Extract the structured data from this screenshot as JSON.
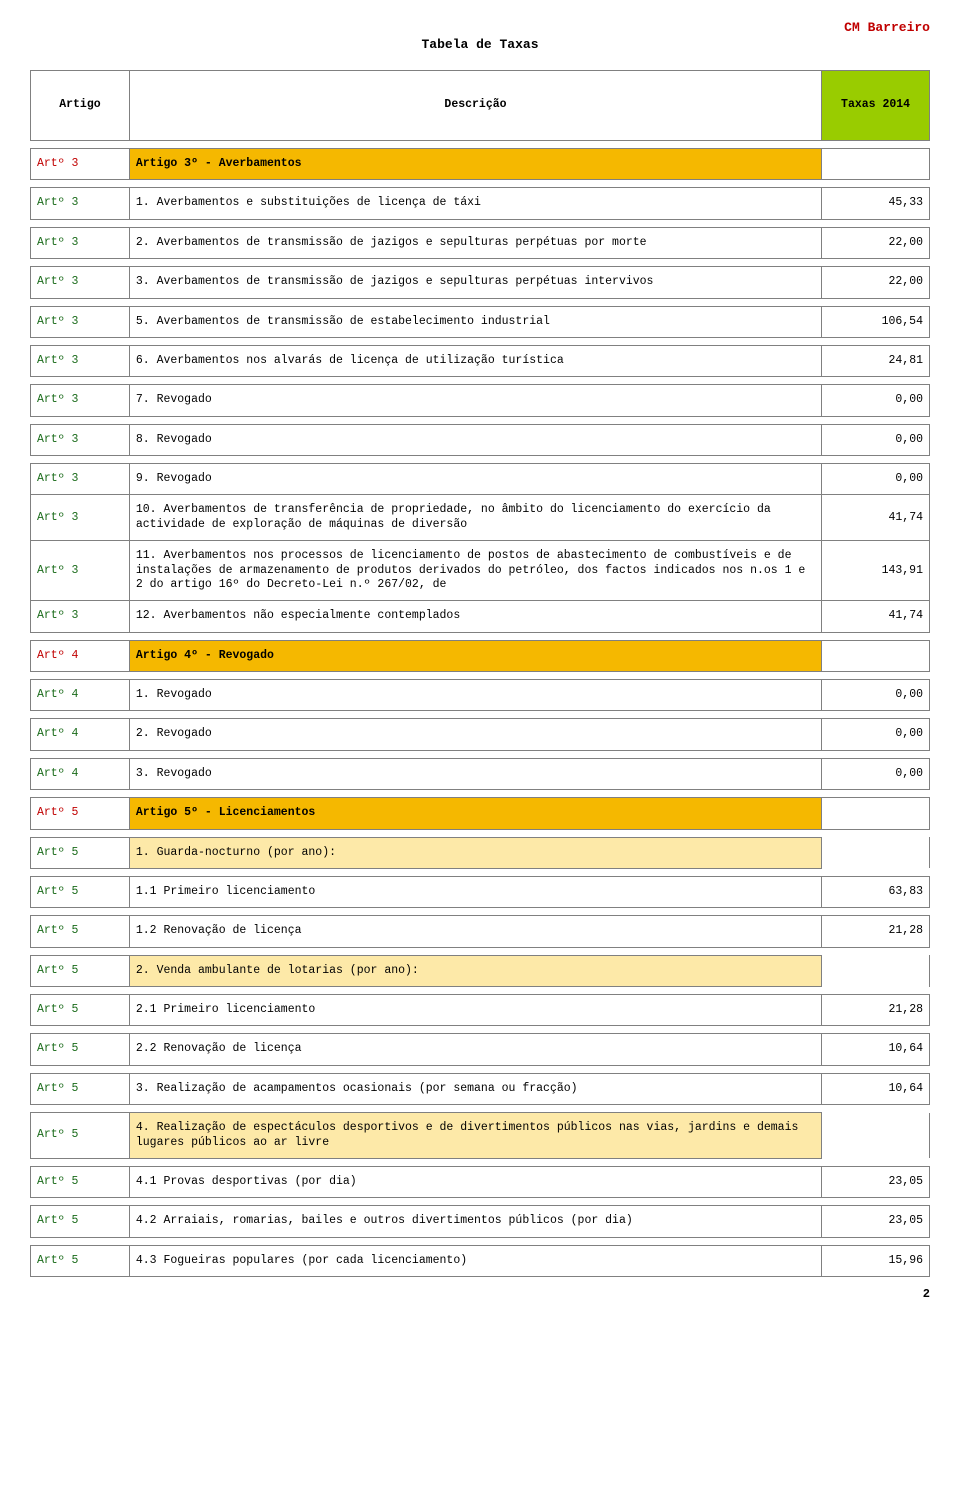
{
  "brand": "CM Barreiro",
  "title": "Tabela de Taxas",
  "pageNumber": "2",
  "header": {
    "art": "Artigo",
    "desc": "Descrição",
    "val": "Taxas 2014"
  },
  "rows": [
    {
      "type": "section",
      "art": "Artº 3",
      "desc": "Artigo 3º - Averbamentos",
      "val": ""
    },
    {
      "type": "spacer"
    },
    {
      "type": "row",
      "art": "Artº 3",
      "desc": "1. Averbamentos e substituições de licença de táxi",
      "val": "45,33"
    },
    {
      "type": "spacer"
    },
    {
      "type": "row",
      "art": "Artº 3",
      "desc": "2. Averbamentos de transmissão de jazigos e sepulturas perpétuas por morte",
      "val": "22,00"
    },
    {
      "type": "spacer"
    },
    {
      "type": "row",
      "art": "Artº 3",
      "desc": "3. Averbamentos de transmissão de jazigos e sepulturas perpétuas intervivos",
      "val": "22,00"
    },
    {
      "type": "spacer"
    },
    {
      "type": "row",
      "art": "Artº 3",
      "desc": "5. Averbamentos de transmissão de estabelecimento industrial",
      "val": "106,54"
    },
    {
      "type": "spacer"
    },
    {
      "type": "row",
      "art": "Artº 3",
      "desc": "6. Averbamentos nos alvarás de licença de utilização turística",
      "val": "24,81"
    },
    {
      "type": "spacer"
    },
    {
      "type": "row",
      "art": "Artº 3",
      "desc": "7. Revogado",
      "val": "0,00"
    },
    {
      "type": "spacer"
    },
    {
      "type": "row",
      "art": "Artº 3",
      "desc": "8. Revogado",
      "val": "0,00"
    },
    {
      "type": "spacer"
    },
    {
      "type": "row",
      "art": "Artº 3",
      "desc": "9. Revogado",
      "val": "0,00"
    },
    {
      "type": "row",
      "art": "Artº 3",
      "desc": "10. Averbamentos de transferência de propriedade, no âmbito do licenciamento do exercício da actividade de exploração de máquinas de diversão",
      "val": "41,74"
    },
    {
      "type": "row",
      "art": "Artº 3",
      "desc": "11. Averbamentos nos processos de licenciamento de postos de abastecimento de combustíveis e de instalações de armazenamento de produtos derivados do petróleo, dos factos indicados nos n.os 1 e 2 do artigo 16º do Decreto-Lei n.º 267/02, de",
      "val": "143,91"
    },
    {
      "type": "row",
      "art": "Artº 3",
      "desc": "12. Averbamentos não especialmente contemplados",
      "val": "41,74"
    },
    {
      "type": "spacer"
    },
    {
      "type": "section",
      "art": "Artº 4",
      "desc": "Artigo 4º - Revogado",
      "val": ""
    },
    {
      "type": "spacer"
    },
    {
      "type": "row",
      "art": "Artº 4",
      "desc": "1. Revogado",
      "val": "0,00"
    },
    {
      "type": "spacer"
    },
    {
      "type": "row",
      "art": "Artº 4",
      "desc": "2. Revogado",
      "val": "0,00"
    },
    {
      "type": "spacer"
    },
    {
      "type": "row",
      "art": "Artº 4",
      "desc": "3. Revogado",
      "val": "0,00"
    },
    {
      "type": "spacer"
    },
    {
      "type": "section",
      "art": "Artº 5",
      "desc": "Artigo 5º - Licenciamentos",
      "val": ""
    },
    {
      "type": "spacer"
    },
    {
      "type": "sub",
      "art": "Artº 5",
      "desc": "1. Guarda-nocturno (por ano):",
      "val": ""
    },
    {
      "type": "spacer"
    },
    {
      "type": "row",
      "art": "Artº 5",
      "desc": "1.1 Primeiro licenciamento",
      "val": "63,83"
    },
    {
      "type": "spacer"
    },
    {
      "type": "row",
      "art": "Artº 5",
      "desc": "1.2 Renovação de licença",
      "val": "21,28"
    },
    {
      "type": "spacer"
    },
    {
      "type": "sub",
      "art": "Artº 5",
      "desc": "2. Venda ambulante de lotarias (por ano):",
      "val": ""
    },
    {
      "type": "spacer"
    },
    {
      "type": "row",
      "art": "Artº 5",
      "desc": "2.1 Primeiro licenciamento",
      "val": "21,28"
    },
    {
      "type": "spacer"
    },
    {
      "type": "row",
      "art": "Artº 5",
      "desc": "2.2 Renovação de licença",
      "val": "10,64"
    },
    {
      "type": "spacer"
    },
    {
      "type": "row",
      "art": "Artº 5",
      "desc": "3. Realização de acampamentos ocasionais (por semana ou fracção)",
      "val": "10,64"
    },
    {
      "type": "spacer"
    },
    {
      "type": "sub",
      "art": "Artº 5",
      "desc": "4. Realização de espectáculos desportivos e de divertimentos públicos nas vias, jardins e demais lugares públicos ao ar livre",
      "val": ""
    },
    {
      "type": "spacer"
    },
    {
      "type": "row",
      "art": "Artº 5",
      "desc": "4.1 Provas desportivas (por dia)",
      "val": "23,05"
    },
    {
      "type": "spacer"
    },
    {
      "type": "row",
      "art": "Artº 5",
      "desc": "4.2 Arraiais, romarias, bailes e outros divertimentos públicos (por dia)",
      "val": "23,05"
    },
    {
      "type": "spacer"
    },
    {
      "type": "row",
      "art": "Artº 5",
      "desc": "4.3 Fogueiras populares (por cada licenciamento)",
      "val": "15,96"
    }
  ]
}
